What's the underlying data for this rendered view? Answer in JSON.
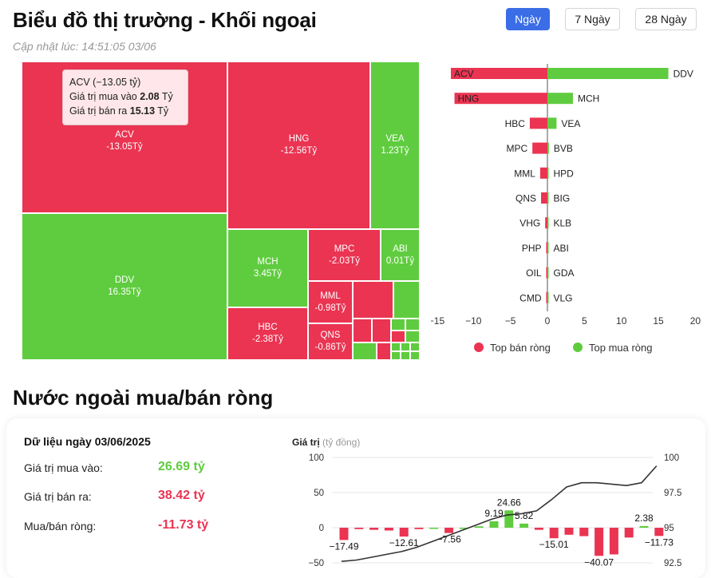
{
  "header": {
    "title": "Biểu đồ thị trường - Khối ngoại",
    "updated": "Cập nhật lúc: 14:51:05 03/06",
    "tabs": [
      {
        "label": "Ngày",
        "active": true
      },
      {
        "label": "7 Ngày",
        "active": false
      },
      {
        "label": "28 Ngày",
        "active": false
      }
    ]
  },
  "colors": {
    "sell": "#ea3452",
    "buy": "#5fcc3f",
    "accent": "#3a6de6"
  },
  "treemap": {
    "cells": [
      {
        "code": "ACV",
        "value": "-13.05Tỷ",
        "side": "sell"
      },
      {
        "code": "HNG",
        "value": "-12.56Tỷ",
        "side": "sell"
      },
      {
        "code": "VEA",
        "value": "1.23Tỷ",
        "side": "buy"
      },
      {
        "code": "DDV",
        "value": "16.35Tỷ",
        "side": "buy"
      },
      {
        "code": "MCH",
        "value": "3.45Tỷ",
        "side": "buy"
      },
      {
        "code": "MPC",
        "value": "-2.03Tỷ",
        "side": "sell"
      },
      {
        "code": "ABI",
        "value": "0.01Tỷ",
        "side": "buy"
      },
      {
        "code": "HBC",
        "value": "-2.38Tỷ",
        "side": "sell"
      },
      {
        "code": "MML",
        "value": "-0.98Tỷ",
        "side": "sell"
      },
      {
        "code": "QNS",
        "value": "-0.86Tỷ",
        "side": "sell"
      }
    ],
    "tooltip": {
      "title": "ACV (−13.05 tỷ)",
      "buy_label": "Giá trị mua vào",
      "buy_value": "2.08",
      "sell_label": "Giá trị bán ra",
      "sell_value": "15.13",
      "unit": "Tỷ"
    }
  },
  "chart_data": [
    {
      "type": "bar",
      "orientation": "horizontal",
      "sell_categories": [
        "ACV",
        "HNG",
        "HBC",
        "MPC",
        "MML",
        "QNS",
        "VHG",
        "PHP",
        "OIL",
        "CMD"
      ],
      "sell_values": [
        -13.05,
        -12.56,
        -2.38,
        -2.03,
        -0.98,
        -0.86,
        -0.3,
        -0.08,
        -0.05,
        -0.04
      ],
      "buy_categories": [
        "DDV",
        "MCH",
        "VEA",
        "BVB",
        "HPD",
        "BIG",
        "KLB",
        "ABI",
        "GDA",
        "VLG"
      ],
      "buy_values": [
        16.35,
        3.45,
        1.23,
        0.2,
        0.15,
        0.1,
        0.05,
        0.01,
        0.01,
        0.01
      ],
      "xlim": [
        -15,
        20
      ],
      "xticks": [
        "−15",
        "−10",
        "−5",
        "0",
        "5",
        "10",
        "15",
        "20"
      ],
      "legend": [
        {
          "name": "Top bán ròng",
          "color": "#ea3452"
        },
        {
          "name": "Top mua ròng",
          "color": "#5fcc3f"
        }
      ],
      "legend_position": "bottom"
    },
    {
      "type": "bar",
      "with_line": true,
      "ylabel": "Giá trị",
      "ylabel_unit": "(tỷ đồng)",
      "ylim": [
        -50,
        100
      ],
      "yticks_left": [
        "100",
        "50",
        "0",
        "−50"
      ],
      "yticks_right": [
        "100",
        "97.5",
        "95",
        "92.5"
      ],
      "values": [
        -17.49,
        -2,
        -3,
        -4,
        -12.61,
        -2,
        0,
        -7.56,
        0,
        2,
        9.19,
        24.66,
        5.82,
        -3,
        -15.01,
        -10,
        -12,
        -40.07,
        -38,
        -14,
        2.38,
        -11.73
      ],
      "labels": [
        "−17.49",
        "",
        "",
        "",
        "−12.61",
        "",
        "",
        "−7.56",
        "",
        "",
        "9.19",
        "24.66",
        "5.82",
        "",
        "−15.01",
        "",
        "",
        "−40.07",
        "",
        "",
        "2.38",
        "−11.73"
      ],
      "line_right": [
        92.6,
        92.7,
        92.9,
        93.1,
        93.3,
        93.6,
        94.0,
        94.4,
        94.8,
        95.2,
        95.6,
        95.9,
        96.0,
        96.2,
        97.0,
        97.9,
        98.2,
        98.2,
        98.1,
        98.0,
        98.2,
        99.4
      ]
    }
  ],
  "net": {
    "title": "Nước ngoài mua/bán ròng",
    "date_label": "Dữ liệu ngày 03/06/2025",
    "rows": [
      {
        "label": "Giá trị mua vào:",
        "value": "26.69 tỷ",
        "side": "buy"
      },
      {
        "label": "Giá trị bán ra:",
        "value": "38.42 tỷ",
        "side": "sell"
      },
      {
        "label": "Mua/bán ròng:",
        "value": "-11.73 tỷ",
        "side": "sell"
      }
    ]
  }
}
